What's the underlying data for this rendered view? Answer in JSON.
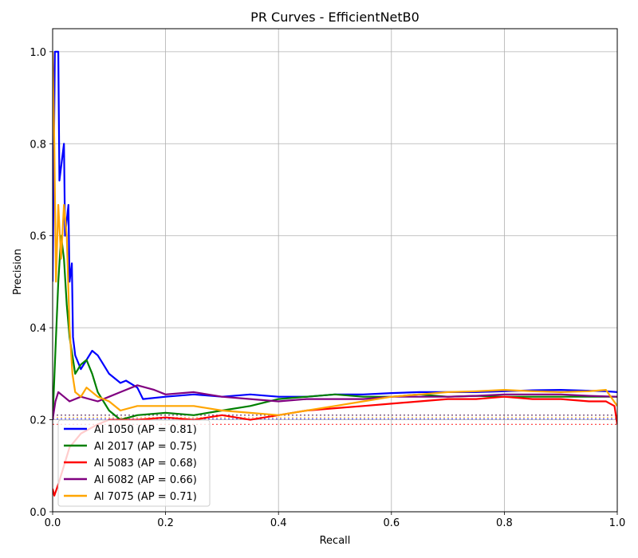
{
  "chart_data": {
    "type": "line",
    "title": "PR Curves - EfficientNetB0",
    "xlabel": "Recall",
    "ylabel": "Precision",
    "xlim": [
      0,
      1
    ],
    "ylim": [
      0,
      1.05
    ],
    "xticks": [
      "0.0",
      "0.2",
      "0.4",
      "0.6",
      "0.8",
      "1.0"
    ],
    "yticks": [
      "0.0",
      "0.2",
      "0.4",
      "0.6",
      "0.8",
      "1.0"
    ],
    "grid": true,
    "legend_position": "lower-left",
    "series": [
      {
        "name": "Al 1050 (AP = 0.81)",
        "color": "#0000ff",
        "baseline": 0.202,
        "points": [
          [
            0,
            0.5
          ],
          [
            0.004,
            1.0
          ],
          [
            0.01,
            1.0
          ],
          [
            0.012,
            0.72
          ],
          [
            0.02,
            0.8
          ],
          [
            0.022,
            0.6
          ],
          [
            0.028,
            0.667
          ],
          [
            0.03,
            0.5
          ],
          [
            0.034,
            0.54
          ],
          [
            0.036,
            0.38
          ],
          [
            0.04,
            0.34
          ],
          [
            0.05,
            0.31
          ],
          [
            0.06,
            0.33
          ],
          [
            0.07,
            0.35
          ],
          [
            0.08,
            0.34
          ],
          [
            0.09,
            0.32
          ],
          [
            0.1,
            0.3
          ],
          [
            0.11,
            0.29
          ],
          [
            0.12,
            0.28
          ],
          [
            0.13,
            0.285
          ],
          [
            0.15,
            0.27
          ],
          [
            0.16,
            0.245
          ],
          [
            0.2,
            0.25
          ],
          [
            0.25,
            0.255
          ],
          [
            0.3,
            0.25
          ],
          [
            0.35,
            0.255
          ],
          [
            0.4,
            0.25
          ],
          [
            0.45,
            0.25
          ],
          [
            0.5,
            0.255
          ],
          [
            0.55,
            0.255
          ],
          [
            0.6,
            0.258
          ],
          [
            0.65,
            0.26
          ],
          [
            0.7,
            0.26
          ],
          [
            0.75,
            0.26
          ],
          [
            0.8,
            0.262
          ],
          [
            0.85,
            0.264
          ],
          [
            0.9,
            0.265
          ],
          [
            0.95,
            0.263
          ],
          [
            0.98,
            0.262
          ],
          [
            1.0,
            0.26
          ]
        ]
      },
      {
        "name": "Al 2017 (AP = 0.75)",
        "color": "#008000",
        "baseline": 0.21,
        "points": [
          [
            0,
            0.2
          ],
          [
            0.005,
            0.35
          ],
          [
            0.01,
            0.5
          ],
          [
            0.015,
            0.6
          ],
          [
            0.02,
            0.55
          ],
          [
            0.025,
            0.45
          ],
          [
            0.03,
            0.38
          ],
          [
            0.04,
            0.3
          ],
          [
            0.05,
            0.32
          ],
          [
            0.06,
            0.33
          ],
          [
            0.07,
            0.3
          ],
          [
            0.08,
            0.26
          ],
          [
            0.09,
            0.24
          ],
          [
            0.1,
            0.22
          ],
          [
            0.12,
            0.2
          ],
          [
            0.15,
            0.21
          ],
          [
            0.2,
            0.215
          ],
          [
            0.25,
            0.21
          ],
          [
            0.3,
            0.22
          ],
          [
            0.35,
            0.23
          ],
          [
            0.4,
            0.245
          ],
          [
            0.45,
            0.25
          ],
          [
            0.5,
            0.255
          ],
          [
            0.55,
            0.25
          ],
          [
            0.6,
            0.25
          ],
          [
            0.65,
            0.255
          ],
          [
            0.7,
            0.25
          ],
          [
            0.75,
            0.252
          ],
          [
            0.8,
            0.25
          ],
          [
            0.85,
            0.25
          ],
          [
            0.9,
            0.25
          ],
          [
            0.95,
            0.25
          ],
          [
            1.0,
            0.25
          ]
        ]
      },
      {
        "name": "Al 5083 (AP = 0.68)",
        "color": "#ff0000",
        "baseline": 0.19,
        "points": [
          [
            0,
            0.05
          ],
          [
            0.003,
            0.035
          ],
          [
            0.01,
            0.06
          ],
          [
            0.02,
            0.1
          ],
          [
            0.03,
            0.14
          ],
          [
            0.05,
            0.17
          ],
          [
            0.08,
            0.19
          ],
          [
            0.1,
            0.2
          ],
          [
            0.15,
            0.2
          ],
          [
            0.2,
            0.205
          ],
          [
            0.25,
            0.2
          ],
          [
            0.3,
            0.21
          ],
          [
            0.35,
            0.2
          ],
          [
            0.4,
            0.21
          ],
          [
            0.45,
            0.22
          ],
          [
            0.5,
            0.225
          ],
          [
            0.55,
            0.23
          ],
          [
            0.6,
            0.235
          ],
          [
            0.65,
            0.24
          ],
          [
            0.7,
            0.245
          ],
          [
            0.75,
            0.245
          ],
          [
            0.8,
            0.25
          ],
          [
            0.85,
            0.245
          ],
          [
            0.9,
            0.245
          ],
          [
            0.95,
            0.24
          ],
          [
            0.98,
            0.24
          ],
          [
            0.995,
            0.23
          ],
          [
            1.0,
            0.19
          ]
        ]
      },
      {
        "name": "Al 6082 (AP = 0.66)",
        "color": "#800080",
        "baseline": 0.21,
        "points": [
          [
            0,
            0.2
          ],
          [
            0.005,
            0.24
          ],
          [
            0.01,
            0.26
          ],
          [
            0.02,
            0.25
          ],
          [
            0.03,
            0.24
          ],
          [
            0.05,
            0.25
          ],
          [
            0.08,
            0.24
          ],
          [
            0.1,
            0.25
          ],
          [
            0.12,
            0.26
          ],
          [
            0.15,
            0.275
          ],
          [
            0.18,
            0.265
          ],
          [
            0.2,
            0.255
          ],
          [
            0.25,
            0.26
          ],
          [
            0.3,
            0.25
          ],
          [
            0.35,
            0.245
          ],
          [
            0.4,
            0.24
          ],
          [
            0.45,
            0.245
          ],
          [
            0.5,
            0.245
          ],
          [
            0.55,
            0.245
          ],
          [
            0.6,
            0.25
          ],
          [
            0.65,
            0.25
          ],
          [
            0.7,
            0.25
          ],
          [
            0.75,
            0.252
          ],
          [
            0.8,
            0.255
          ],
          [
            0.85,
            0.255
          ],
          [
            0.9,
            0.255
          ],
          [
            0.95,
            0.252
          ],
          [
            1.0,
            0.25
          ]
        ]
      },
      {
        "name": "Al 7075 (AP = 0.71)",
        "color": "#ffa500",
        "baseline": 0.205,
        "points": [
          [
            0,
            1.0
          ],
          [
            0.003,
            0.8
          ],
          [
            0.006,
            0.5
          ],
          [
            0.01,
            0.667
          ],
          [
            0.015,
            0.55
          ],
          [
            0.02,
            0.667
          ],
          [
            0.025,
            0.6
          ],
          [
            0.03,
            0.4
          ],
          [
            0.035,
            0.3
          ],
          [
            0.04,
            0.26
          ],
          [
            0.05,
            0.25
          ],
          [
            0.06,
            0.27
          ],
          [
            0.08,
            0.25
          ],
          [
            0.1,
            0.24
          ],
          [
            0.12,
            0.22
          ],
          [
            0.15,
            0.23
          ],
          [
            0.2,
            0.23
          ],
          [
            0.25,
            0.23
          ],
          [
            0.3,
            0.22
          ],
          [
            0.35,
            0.215
          ],
          [
            0.4,
            0.21
          ],
          [
            0.45,
            0.22
          ],
          [
            0.5,
            0.23
          ],
          [
            0.55,
            0.24
          ],
          [
            0.6,
            0.25
          ],
          [
            0.65,
            0.255
          ],
          [
            0.7,
            0.26
          ],
          [
            0.75,
            0.262
          ],
          [
            0.8,
            0.265
          ],
          [
            0.85,
            0.262
          ],
          [
            0.9,
            0.26
          ],
          [
            0.95,
            0.262
          ],
          [
            0.98,
            0.265
          ],
          [
            1.0,
            0.23
          ]
        ]
      }
    ]
  }
}
